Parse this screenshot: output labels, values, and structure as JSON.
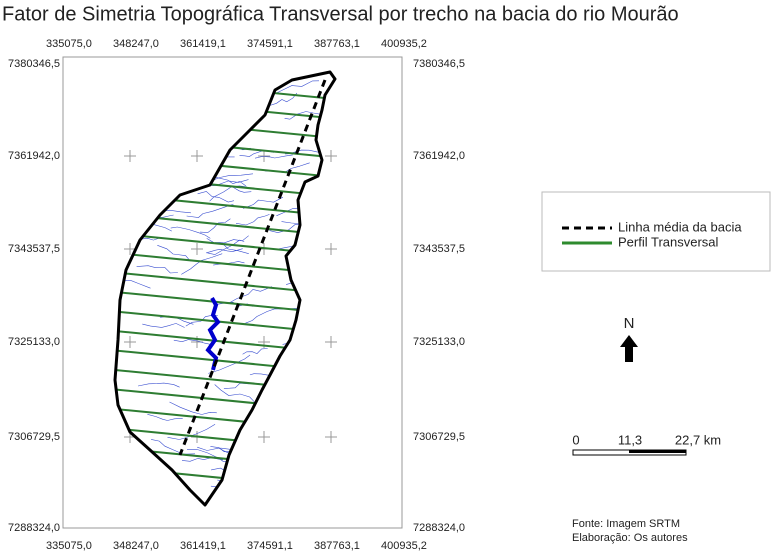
{
  "title": "Fator de Simetria Topográfica Transversal por trecho na bacia do rio Mourão",
  "map": {
    "x_labels": [
      "335075,0",
      "348247,0",
      "361419,1",
      "374591,1",
      "387763,1",
      "400935,2"
    ],
    "y_labels": [
      "7380346,5",
      "7361942,0",
      "7343537,5",
      "7325133,0",
      "7306729,5",
      "7288324,0"
    ]
  },
  "legend": [
    "Linha média da bacia",
    "Perfil Transversal"
  ],
  "north": "N",
  "scale": [
    "0",
    "11,3",
    "22,7 km"
  ],
  "credits": [
    "Fonte: Imagem SRTM",
    "Elaboração: Os autores"
  ]
}
